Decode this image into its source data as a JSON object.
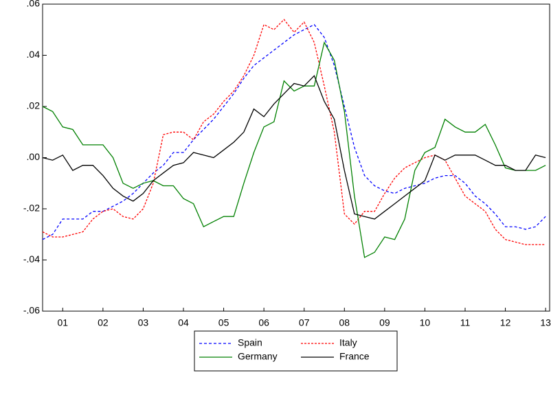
{
  "chart_data": {
    "type": "line",
    "x": [
      2001,
      2001.25,
      2001.5,
      2001.75,
      2002,
      2002.25,
      2002.5,
      2002.75,
      2003,
      2003.25,
      2003.5,
      2003.75,
      2004,
      2004.25,
      2004.5,
      2004.75,
      2005,
      2005.25,
      2005.5,
      2005.75,
      2006,
      2006.25,
      2006.5,
      2006.75,
      2007,
      2007.25,
      2007.5,
      2007.75,
      2008,
      2008.25,
      2008.5,
      2008.75,
      2009,
      2009.25,
      2009.5,
      2009.75,
      2010,
      2010.25,
      2010.5,
      2010.75,
      2011,
      2011.25,
      2011.5,
      2011.75,
      2012,
      2012.25,
      2012.5,
      2012.75,
      2013,
      2013.25,
      2013.5
    ],
    "series": [
      {
        "name": "Spain",
        "color": "#0000ff",
        "dash": "4,3",
        "values": [
          -0.032,
          -0.03,
          -0.024,
          -0.024,
          -0.024,
          -0.021,
          -0.021,
          -0.019,
          -0.017,
          -0.014,
          -0.01,
          -0.006,
          -0.003,
          0.002,
          0.002,
          0.007,
          0.011,
          0.015,
          0.02,
          0.025,
          0.031,
          0.036,
          0.039,
          0.042,
          0.045,
          0.048,
          0.05,
          0.052,
          0.047,
          0.036,
          0.02,
          0.004,
          -0.007,
          -0.011,
          -0.013,
          -0.014,
          -0.012,
          -0.011,
          -0.01,
          -0.008,
          -0.007,
          -0.007,
          -0.01,
          -0.015,
          -0.018,
          -0.022,
          -0.027,
          -0.027,
          -0.028,
          -0.027,
          -0.023
        ]
      },
      {
        "name": "Italy",
        "color": "#ff0000",
        "dash": "3,2",
        "values": [
          -0.029,
          -0.031,
          -0.031,
          -0.03,
          -0.029,
          -0.024,
          -0.021,
          -0.02,
          -0.023,
          -0.024,
          -0.02,
          -0.01,
          0.009,
          0.01,
          0.01,
          0.007,
          0.014,
          0.017,
          0.022,
          0.026,
          0.032,
          0.04,
          0.052,
          0.05,
          0.054,
          0.049,
          0.053,
          0.045,
          0.028,
          0.01,
          -0.022,
          -0.026,
          -0.021,
          -0.021,
          -0.014,
          -0.008,
          -0.004,
          -0.002,
          0.0,
          0.001,
          -0.001,
          -0.008,
          -0.015,
          -0.018,
          -0.021,
          -0.028,
          -0.032,
          -0.033,
          -0.034,
          -0.034,
          -0.034
        ]
      },
      {
        "name": "Germany",
        "color": "#008000",
        "values": [
          0.02,
          0.018,
          0.012,
          0.011,
          0.005,
          0.005,
          0.005,
          0.0,
          -0.01,
          -0.012,
          -0.01,
          -0.009,
          -0.011,
          -0.011,
          -0.016,
          -0.018,
          -0.027,
          -0.025,
          -0.023,
          -0.023,
          -0.01,
          0.002,
          0.012,
          0.014,
          0.03,
          0.026,
          0.028,
          0.028,
          0.045,
          0.038,
          0.018,
          -0.015,
          -0.039,
          -0.037,
          -0.031,
          -0.032,
          -0.024,
          -0.005,
          0.002,
          0.004,
          0.015,
          0.012,
          0.01,
          0.01,
          0.013,
          0.005,
          -0.004,
          -0.005,
          -0.005,
          -0.005,
          -0.003
        ]
      },
      {
        "name": "France",
        "color": "#000000",
        "values": [
          0.0,
          -0.001,
          0.001,
          -0.005,
          -0.003,
          -0.003,
          -0.007,
          -0.012,
          -0.015,
          -0.017,
          -0.014,
          -0.009,
          -0.006,
          -0.003,
          -0.002,
          0.002,
          0.001,
          0.0,
          0.003,
          0.006,
          0.01,
          0.019,
          0.016,
          0.021,
          0.025,
          0.029,
          0.028,
          0.032,
          0.022,
          0.015,
          -0.005,
          -0.022,
          -0.023,
          -0.024,
          -0.021,
          -0.018,
          -0.015,
          -0.012,
          -0.009,
          0.001,
          -0.001,
          0.001,
          0.001,
          0.001,
          -0.001,
          -0.003,
          -0.003,
          -0.005,
          -0.005,
          0.001,
          0.0
        ]
      }
    ],
    "xlim": [
      2001,
      2013.6
    ],
    "xticks": [
      {
        "value": 2001.5,
        "label": "01"
      },
      {
        "value": 2002.5,
        "label": "02"
      },
      {
        "value": 2003.5,
        "label": "03"
      },
      {
        "value": 2004.5,
        "label": "04"
      },
      {
        "value": 2005.5,
        "label": "05"
      },
      {
        "value": 2006.5,
        "label": "06"
      },
      {
        "value": 2007.5,
        "label": "07"
      },
      {
        "value": 2008.5,
        "label": "08"
      },
      {
        "value": 2009.5,
        "label": "09"
      },
      {
        "value": 2010.5,
        "label": "10"
      },
      {
        "value": 2011.5,
        "label": "11"
      },
      {
        "value": 2012.5,
        "label": "12"
      },
      {
        "value": 2013.5,
        "label": "13"
      }
    ],
    "ylim": [
      -0.06,
      0.06
    ],
    "yticks": [
      {
        "value": -0.06,
        "label": "-.06"
      },
      {
        "value": -0.04,
        "label": "-.04"
      },
      {
        "value": -0.02,
        "label": "-.02"
      },
      {
        "value": 0,
        "label": ".00"
      },
      {
        "value": 0.02,
        "label": ".02"
      },
      {
        "value": 0.04,
        "label": ".04"
      },
      {
        "value": 0.06,
        "label": ".06"
      }
    ],
    "legend": "bottom"
  }
}
